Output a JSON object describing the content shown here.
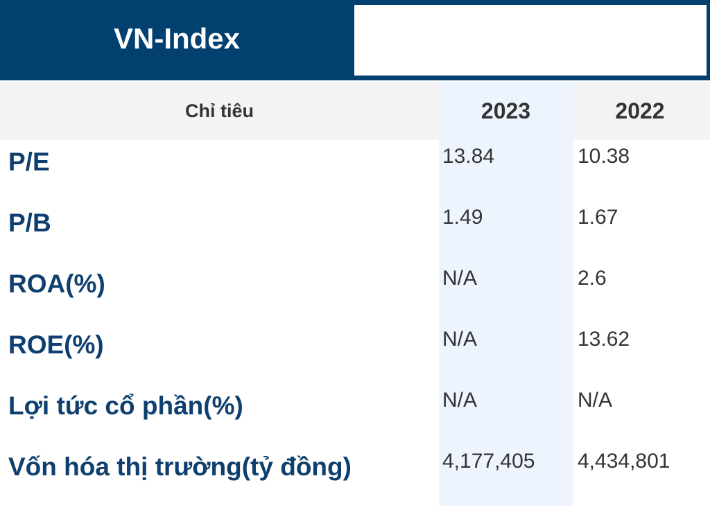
{
  "header": {
    "title": "VN-Index"
  },
  "table": {
    "columns": {
      "indicator": "Chỉ tiêu",
      "year_a": "2023",
      "year_b": "2022"
    },
    "rows": [
      {
        "label": "P/E",
        "y2023": "13.84",
        "y2022": "10.38"
      },
      {
        "label": "P/B",
        "y2023": "1.49",
        "y2022": "1.67"
      },
      {
        "label": "ROA(%)",
        "y2023": "N/A",
        "y2022": "2.6"
      },
      {
        "label": "ROE(%)",
        "y2023": "N/A",
        "y2022": "13.62"
      },
      {
        "label": "Lợi tức cổ phần(%)",
        "y2023": "N/A",
        "y2022": "N/A"
      },
      {
        "label": "Vốn hóa thị trường(tỷ đồng)",
        "y2023": "4,177,405",
        "y2022": "4,434,801"
      }
    ]
  },
  "colors": {
    "header_bg": "#02406f",
    "label_text": "#0e3f6e",
    "highlight_column": "#edf4fd",
    "column_header_bg": "#f3f3f3"
  }
}
